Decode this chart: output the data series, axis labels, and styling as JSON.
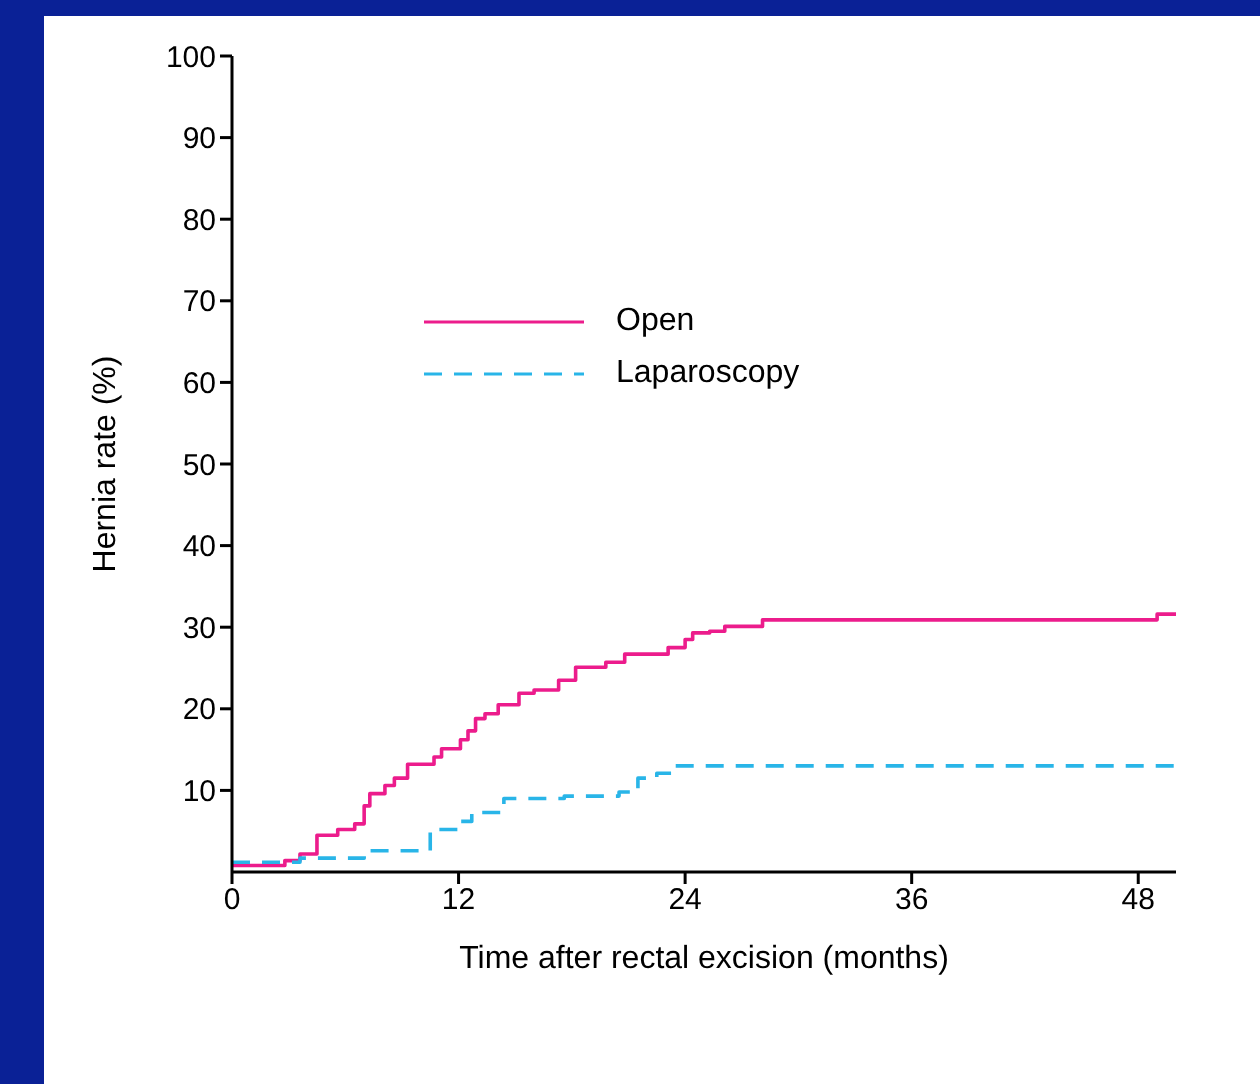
{
  "chart_data": {
    "type": "step",
    "xlabel": "Time after rectal excision (months)",
    "ylabel": "Hernia rate (%)",
    "xlim": [
      0,
      50
    ],
    "xticks": [
      0,
      12,
      24,
      36,
      48
    ],
    "ylim": [
      0,
      100
    ],
    "yticks": [
      10,
      20,
      30,
      40,
      50,
      60,
      70,
      80,
      90,
      100
    ],
    "legend": "top left",
    "marker": "none",
    "series": [
      {
        "name": "Open",
        "color": "#ec1c8c",
        "line_style": "solid",
        "x": [
          0,
          2.8,
          3.6,
          4.5,
          5.6,
          6.5,
          7.0,
          7.3,
          8.1,
          8.6,
          9.3,
          10.7,
          11.1,
          12.1,
          12.5,
          12.9,
          13.4,
          14.1,
          15.2,
          16.0,
          17.3,
          18.2,
          19.8,
          20.8,
          23.1,
          24.0,
          24.4,
          25.3,
          26.1,
          28.1,
          49.0,
          50
        ],
        "values": [
          0.8,
          1.4,
          2.2,
          4.5,
          5.2,
          5.9,
          8.1,
          9.6,
          10.6,
          11.5,
          13.2,
          14.1,
          15.1,
          16.2,
          17.3,
          18.8,
          19.4,
          20.5,
          21.9,
          22.3,
          23.5,
          25.1,
          25.7,
          26.7,
          27.5,
          28.5,
          29.3,
          29.5,
          30.1,
          30.9,
          31.6,
          31.6
        ]
      },
      {
        "name": "Laparoscopy",
        "color": "#29b5e8",
        "line_style": "dashed",
        "x": [
          0,
          3.6,
          7.0,
          10.5,
          12.1,
          12.7,
          14.4,
          17.6,
          20.5,
          21.5,
          22.5,
          23.3,
          50
        ],
        "values": [
          1.2,
          1.7,
          2.6,
          5.2,
          6.2,
          7.3,
          9.0,
          9.3,
          9.8,
          11.5,
          12.1,
          13.0,
          13.0
        ]
      }
    ]
  }
}
